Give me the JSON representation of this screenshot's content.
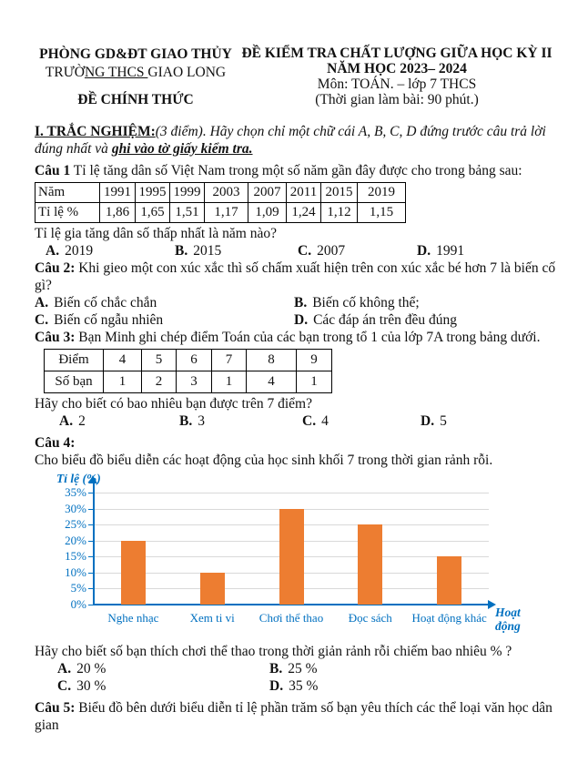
{
  "header": {
    "left": {
      "dept": "PHÒNG GD&ĐT GIAO THỦY",
      "school_pre": "TRƯỜ",
      "school_underlined": "NG THCS ",
      "school_post": "GIAO LONG",
      "exam_type": "ĐỀ CHÍNH THỨC"
    },
    "right": {
      "title_line1": "ĐỀ KIỂM TRA CHẤT LƯỢNG GIỮA HỌC KỲ II",
      "title_line2": "NĂM HỌC 2023– 2024",
      "subject": "Môn: TOÁN. – lớp 7 THCS",
      "duration": "(Thời gian làm bài: 90 phút.)"
    }
  },
  "section1": {
    "heading": "I. TRẮC NGHIỆM:",
    "intro_italic": "(3 điểm). Hãy chọn chỉ một chữ cái A, B, C, D đứng trước câu trả lời đúng nhất và ",
    "intro_emph": "ghi vào tờ giấy kiểm tra."
  },
  "q1": {
    "label": "Câu 1",
    "text": " Tỉ lệ tăng dân số Việt Nam trong một số năm gần đây được cho trong bảng sau:",
    "table": {
      "row1": [
        "Năm",
        "1991",
        "1995",
        "1999",
        "2003",
        "2007",
        "2011",
        "2015",
        "2019"
      ],
      "row2": [
        "Tỉ lệ %",
        "1,86",
        "1,65",
        "1,51",
        "1,17",
        "1,09",
        "1,24",
        "1,12",
        "1,15"
      ]
    },
    "question": "Tỉ lệ gia tăng dân số thấp nhất là năm nào?",
    "options": [
      {
        "letter": "A.",
        "text": "2019"
      },
      {
        "letter": "B.",
        "text": "2015"
      },
      {
        "letter": "C.",
        "text": "2007"
      },
      {
        "letter": "D.",
        "text": "1991"
      }
    ]
  },
  "q2": {
    "label": "Câu 2:",
    "text": " Khi gieo một con xúc xắc thì số chấm xuất hiện trên con xúc xắc bé hơn 7 là biến cố gì?",
    "options": [
      {
        "letter": "A.",
        "text": "Biến cố chắc chắn"
      },
      {
        "letter": "B.",
        "text": "Biến cố không thể;"
      },
      {
        "letter": "C.",
        "text": "Biến cố ngẫu nhiên"
      },
      {
        "letter": "D.",
        "text": "Các đáp án trên đều đúng"
      }
    ]
  },
  "q3": {
    "label": "Câu 3:",
    "text": " Bạn Minh ghi chép điểm Toán của các bạn trong tổ 1 của lớp 7A trong bảng dưới.",
    "table": {
      "row1": [
        "Điểm",
        "4",
        "5",
        "6",
        "7",
        "8",
        "9"
      ],
      "row2": [
        "Số bạn",
        "1",
        "2",
        "3",
        "1",
        "4",
        "1"
      ]
    },
    "question": "Hãy cho biết có bao nhiêu bạn được trên 7 điểm?",
    "options": [
      {
        "letter": "A.",
        "text": "2"
      },
      {
        "letter": "B.",
        "text": "3"
      },
      {
        "letter": "C.",
        "text": "4"
      },
      {
        "letter": "D.",
        "text": "5"
      }
    ]
  },
  "q4": {
    "label": "Câu 4:",
    "text": "Cho biểu đồ biểu diễn các hoạt động của học sinh khối 7 trong thời gian rảnh rỗi.",
    "question": "Hãy cho biết số bạn thích chơi thể thao trong thời giản rảnh rỗi chiếm bao nhiêu % ?",
    "options": [
      {
        "letter": "A.",
        "text": "20 %"
      },
      {
        "letter": "B.",
        "text": "25 %"
      },
      {
        "letter": "C.",
        "text": "30 %"
      },
      {
        "letter": "D.",
        "text": "35 %"
      }
    ]
  },
  "q5": {
    "label": "Câu 5:",
    "text": " Biểu đồ bên dưới biểu diễn tỉ lệ phần trăm số bạn yêu thích các thể loại văn học dân gian"
  },
  "chart_data": {
    "type": "bar",
    "categories": [
      "Nghe nhạc",
      "Xem ti vi",
      "Chơi thể thao",
      "Đọc sách",
      "Hoạt động khác"
    ],
    "values": [
      20,
      10,
      30,
      25,
      15
    ],
    "title": "",
    "ylabel": "Tỉ lệ (%)",
    "xlabel": "Hoạt động",
    "ylim": [
      0,
      35
    ],
    "ytick_step": 5,
    "ytick_labels": [
      "0%",
      "5%",
      "10%",
      "15%",
      "20%",
      "25%",
      "30%",
      "35%"
    ],
    "grid": true,
    "legend": "none",
    "bar_color": "#ED7D31",
    "axis_color": "#0070C0",
    "gridline_color": "#D9D9D9"
  }
}
